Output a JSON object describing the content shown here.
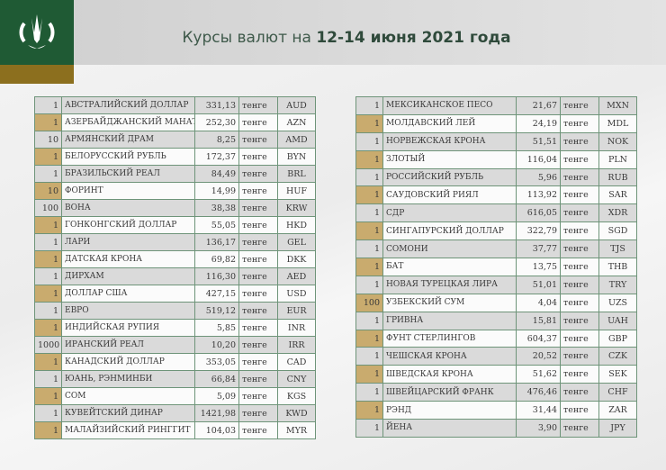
{
  "header": {
    "title_prefix": "Курсы валют на ",
    "title_bold": "12-14 июня 2021 года"
  },
  "colors": {
    "brand_green": "#1f5a34",
    "brand_gold": "#8c6f1e",
    "highlight": "#c9ab6e",
    "border": "#6e9479"
  },
  "left": {
    "rows": [
      {
        "qty": "1",
        "name": "АВСТРАЛИЙСКИЙ ДОЛЛАР",
        "value": "331,13",
        "unit": "тенге",
        "code": "AUD"
      },
      {
        "qty": "1",
        "name": "АЗЕРБАЙДЖАНСКИЙ МАНАТ",
        "value": "252,30",
        "unit": "тенге",
        "code": "AZN"
      },
      {
        "qty": "10",
        "name": "АРМЯНСКИЙ  ДРАМ",
        "value": "8,25",
        "unit": "тенге",
        "code": "AMD"
      },
      {
        "qty": "1",
        "name": "БЕЛОРУССКИЙ РУБЛЬ",
        "value": "172,37",
        "unit": "тенге",
        "code": "BYN"
      },
      {
        "qty": "1",
        "name": "БРАЗИЛЬСКИЙ РЕАЛ",
        "value": "84,49",
        "unit": "тенге",
        "code": "BRL"
      },
      {
        "qty": "10",
        "name": "ФОРИНТ",
        "value": "14,99",
        "unit": "тенге",
        "code": "HUF"
      },
      {
        "qty": "100",
        "name": "ВОНА",
        "value": "38,38",
        "unit": "тенге",
        "code": "KRW"
      },
      {
        "qty": "1",
        "name": "ГОНКОНГСКИЙ ДОЛЛАР",
        "value": "55,05",
        "unit": "тенге",
        "code": "HKD"
      },
      {
        "qty": "1",
        "name": "ЛАРИ",
        "value": "136,17",
        "unit": "тенге",
        "code": "GEL"
      },
      {
        "qty": "1",
        "name": "ДАТСКАЯ КРОНА",
        "value": "69,82",
        "unit": "тенге",
        "code": "DKK"
      },
      {
        "qty": "1",
        "name": "ДИРХАМ",
        "value": "116,30",
        "unit": "тенге",
        "code": "AED"
      },
      {
        "qty": "1",
        "name": "ДОЛЛАР США",
        "value": "427,15",
        "unit": "тенге",
        "code": "USD"
      },
      {
        "qty": "1",
        "name": "ЕВРО",
        "value": "519,12",
        "unit": "тенге",
        "code": "EUR"
      },
      {
        "qty": "1",
        "name": "ИНДИЙСКАЯ РУПИЯ",
        "value": "5,85",
        "unit": "тенге",
        "code": "INR"
      },
      {
        "qty": "1000",
        "name": "ИРАНСКИЙ РЕАЛ",
        "value": "10,20",
        "unit": "тенге",
        "code": "IRR"
      },
      {
        "qty": "1",
        "name": "КАНАДСКИЙ ДОЛЛАР",
        "value": "353,05",
        "unit": "тенге",
        "code": "CAD"
      },
      {
        "qty": "1",
        "name": "ЮАНЬ, РЭНМИНБИ",
        "value": "66,84",
        "unit": "тенге",
        "code": "CNY"
      },
      {
        "qty": "1",
        "name": "СОМ",
        "value": "5,09",
        "unit": "тенге",
        "code": "KGS"
      },
      {
        "qty": "1",
        "name": "КУВЕЙТСКИЙ ДИНАР",
        "value": "1421,98",
        "unit": "тенге",
        "code": "KWD"
      },
      {
        "qty": "1",
        "name": "МАЛАЙЗИЙСКИЙ РИНГГИТ",
        "value": "104,03",
        "unit": "тенге",
        "code": "MYR"
      }
    ]
  },
  "right": {
    "rows": [
      {
        "qty": "1",
        "name": "МЕКСИКАНСКОЕ ПЕСО",
        "value": "21,67",
        "unit": "тенге",
        "code": "MXN"
      },
      {
        "qty": "1",
        "name": "МОЛДАВСКИЙ ЛЕЙ",
        "value": "24,19",
        "unit": "тенге",
        "code": "MDL"
      },
      {
        "qty": "1",
        "name": "НОРВЕЖСКАЯ КРОНА",
        "value": "51,51",
        "unit": "тенге",
        "code": "NOK"
      },
      {
        "qty": "1",
        "name": "ЗЛОТЫЙ",
        "value": "116,04",
        "unit": "тенге",
        "code": "PLN"
      },
      {
        "qty": "1",
        "name": "РОССИЙСКИЙ РУБЛЬ",
        "value": "5,96",
        "unit": "тенге",
        "code": "RUB"
      },
      {
        "qty": "1",
        "name": "САУДОВСКИЙ РИЯЛ",
        "value": "113,92",
        "unit": "тенге",
        "code": "SAR"
      },
      {
        "qty": "1",
        "name": "СДР",
        "value": "616,05",
        "unit": "тенге",
        "code": "XDR"
      },
      {
        "qty": "1",
        "name": "СИНГАПУРСКИЙ ДОЛЛАР",
        "value": "322,79",
        "unit": "тенге",
        "code": "SGD"
      },
      {
        "qty": "1",
        "name": "СОМОНИ",
        "value": "37,77",
        "unit": "тенге",
        "code": "TJS"
      },
      {
        "qty": "1",
        "name": "БАТ",
        "value": "13,75",
        "unit": "тенге",
        "code": "THB"
      },
      {
        "qty": "1",
        "name": "НОВАЯ ТУРЕЦКАЯ ЛИРА",
        "value": "51,01",
        "unit": "тенге",
        "code": "TRY"
      },
      {
        "qty": "100",
        "name": "УЗБЕКСКИЙ СУМ",
        "value": "4,04",
        "unit": "тенге",
        "code": "UZS"
      },
      {
        "qty": "1",
        "name": "ГРИВНА",
        "value": "15,81",
        "unit": "тенге",
        "code": "UAH"
      },
      {
        "qty": "1",
        "name": "ФУНТ СТЕРЛИНГОВ",
        "value": "604,37",
        "unit": "тенге",
        "code": "GBP"
      },
      {
        "qty": "1",
        "name": "ЧЕШСКАЯ КРОНА",
        "value": "20,52",
        "unit": "тенге",
        "code": "CZK"
      },
      {
        "qty": "1",
        "name": "ШВЕДСКАЯ КРОНА",
        "value": "51,62",
        "unit": "тенге",
        "code": "SEK"
      },
      {
        "qty": "1",
        "name": "ШВЕЙЦАРСКИЙ ФРАНК",
        "value": "476,46",
        "unit": "тенге",
        "code": "CHF"
      },
      {
        "qty": "1",
        "name": "РЭНД",
        "value": "31,44",
        "unit": "тенге",
        "code": "ZAR"
      },
      {
        "qty": "1",
        "name": "ЙЕНА",
        "value": "3,90",
        "unit": "тенге",
        "code": "JPY"
      }
    ]
  }
}
